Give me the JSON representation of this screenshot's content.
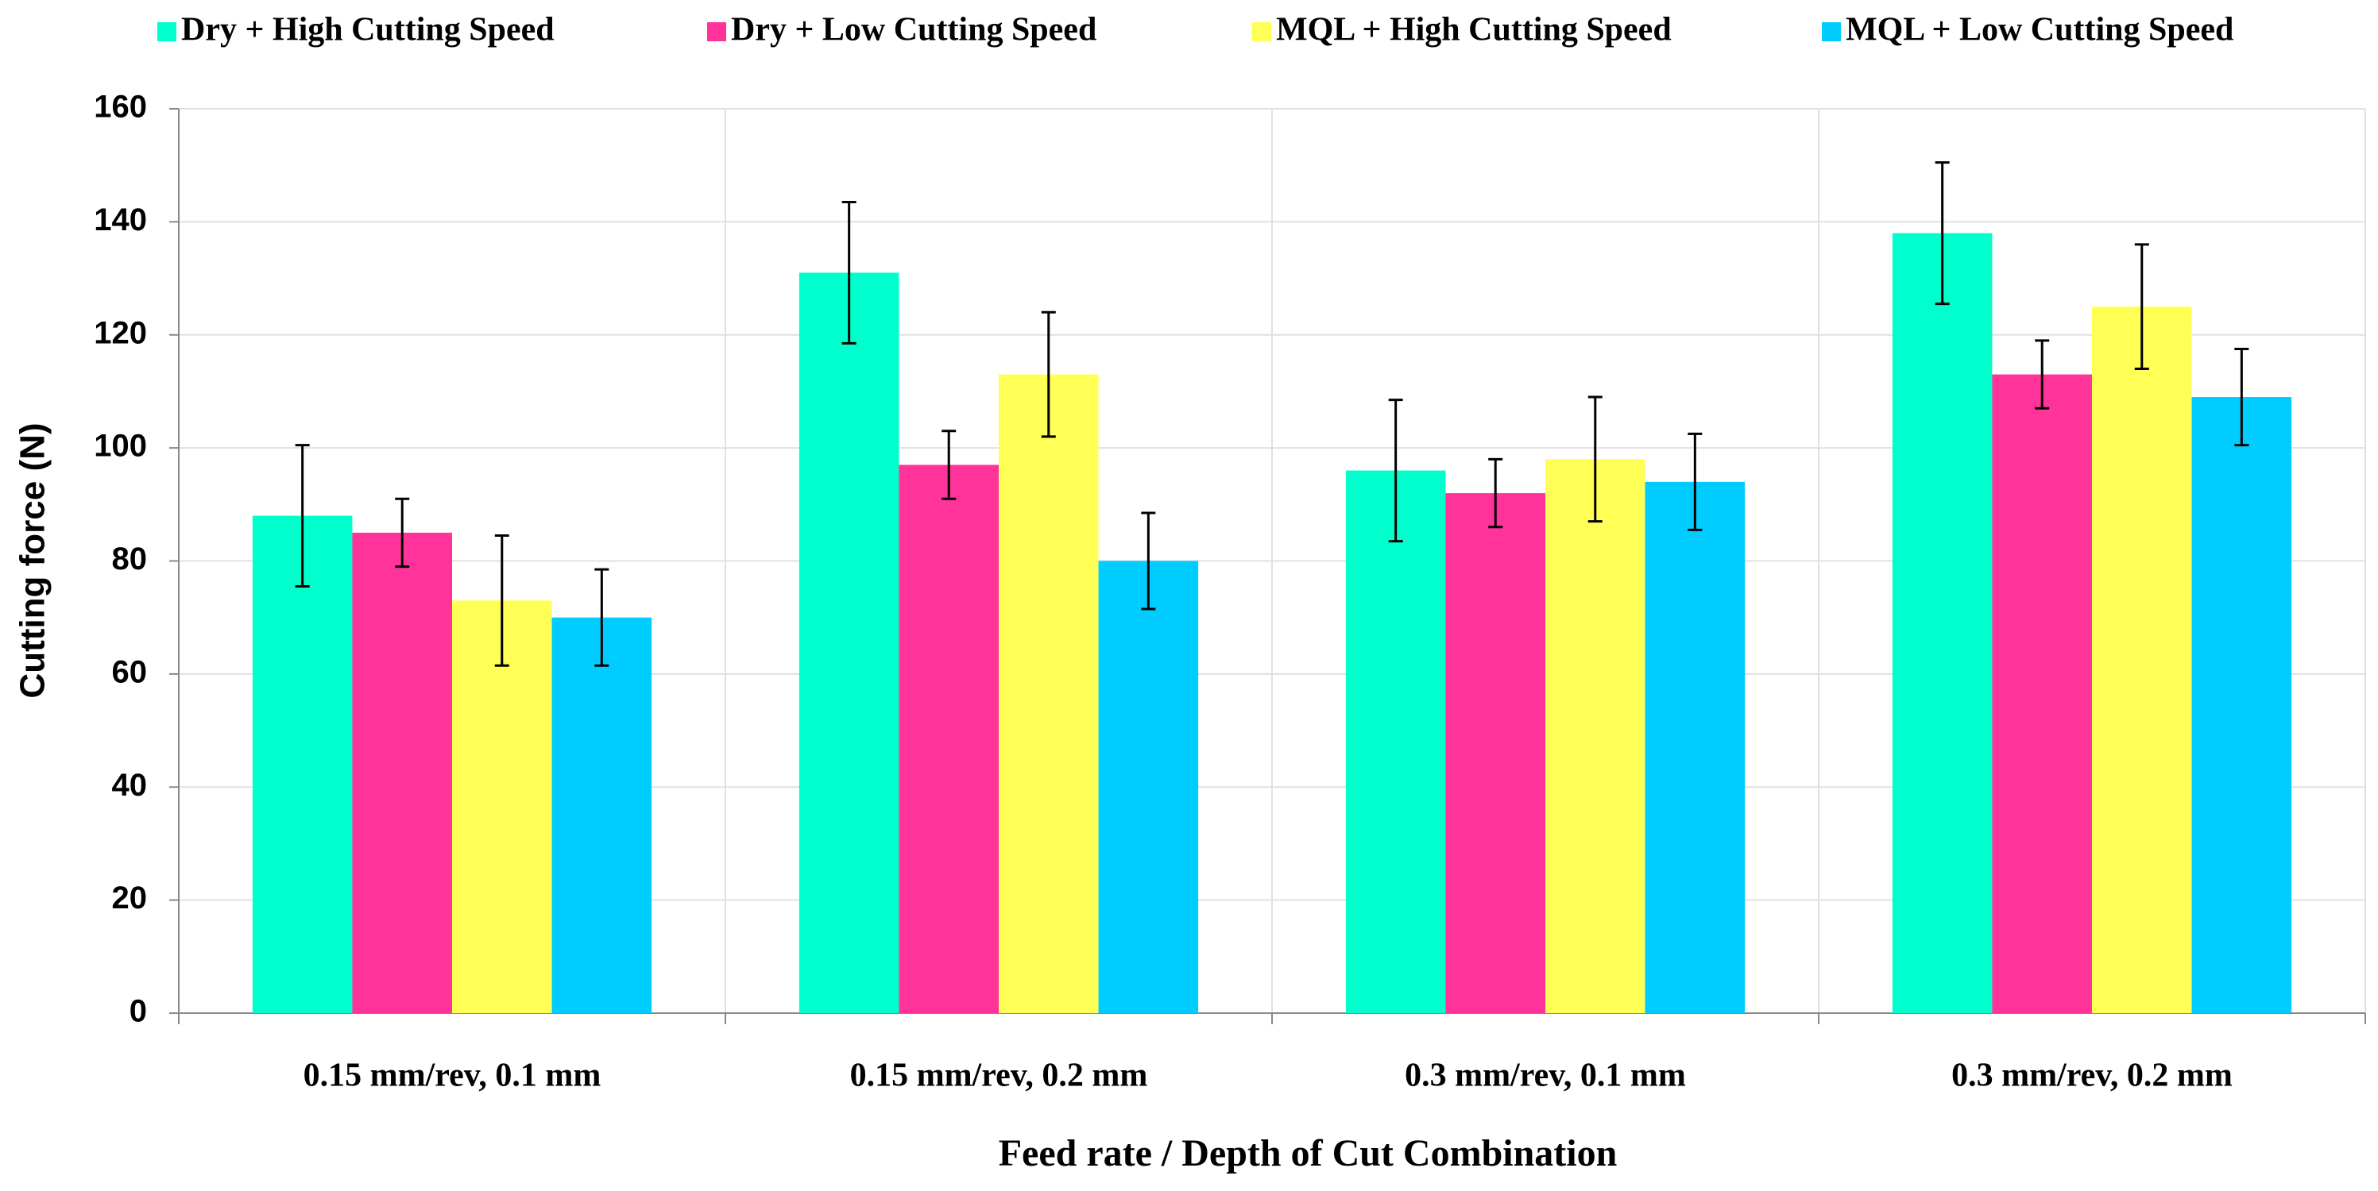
{
  "chart_data": {
    "type": "bar",
    "y_label": "Cutting force  (N)",
    "x_label": "Feed rate / Depth of Cut Combination",
    "categories": [
      "0.15 mm/rev, 0.1 mm",
      "0.15 mm/rev, 0.2 mm",
      "0.3 mm/rev, 0.1 mm",
      "0.3 mm/rev, 0.2 mm"
    ],
    "series": [
      {
        "name": "Dry + High Cutting Speed",
        "color": "#00ffcc",
        "values": [
          88,
          131,
          96,
          138
        ],
        "errors": [
          12.5,
          12.5,
          12.5,
          12.5
        ]
      },
      {
        "name": "Dry + Low Cutting Speed",
        "color": "#ff3399",
        "values": [
          85,
          97,
          92,
          113
        ],
        "errors": [
          6,
          6,
          6,
          6
        ]
      },
      {
        "name": "MQL + High Cutting Speed",
        "color": "#ffff55",
        "values": [
          73,
          113,
          98,
          125
        ],
        "errors": [
          11.5,
          11,
          11,
          11
        ]
      },
      {
        "name": "MQL + Low Cutting Speed",
        "color": "#00ccff",
        "values": [
          70,
          80,
          94,
          109
        ],
        "errors": [
          8.5,
          8.5,
          8.5,
          8.5
        ]
      }
    ],
    "ylim": [
      0,
      160
    ],
    "yticks": [
      0,
      20,
      40,
      60,
      80,
      100,
      120,
      140,
      160
    ],
    "grid": true,
    "legend": "top"
  }
}
